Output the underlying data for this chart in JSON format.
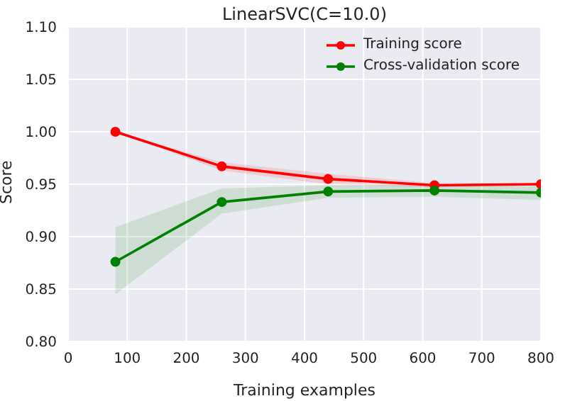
{
  "chart_data": {
    "type": "line",
    "title": "LinearSVC(C=10.0)",
    "xlabel": "Training examples",
    "ylabel": "Score",
    "x": [
      80,
      260,
      440,
      620,
      800
    ],
    "series": [
      {
        "name": "Training score",
        "color": "#ff0000",
        "values": [
          1.0,
          0.967,
          0.955,
          0.949,
          0.95
        ],
        "lower": [
          1.0,
          0.963,
          0.95,
          0.947,
          0.949
        ],
        "upper": [
          1.0,
          0.971,
          0.96,
          0.951,
          0.951
        ]
      },
      {
        "name": "Cross-validation score",
        "color": "#008000",
        "values": [
          0.876,
          0.933,
          0.943,
          0.944,
          0.942
        ],
        "lower": [
          0.845,
          0.922,
          0.937,
          0.938,
          0.935
        ],
        "upper": [
          0.909,
          0.946,
          0.949,
          0.949,
          0.948
        ]
      }
    ],
    "xlim": [
      0,
      800
    ],
    "xticks": [
      0,
      100,
      200,
      300,
      400,
      500,
      600,
      700,
      800
    ],
    "ylim": [
      0.8,
      1.1
    ],
    "yticks": [
      {
        "value": 0.8,
        "label": "0.80"
      },
      {
        "value": 0.85,
        "label": "0.85"
      },
      {
        "value": 0.9,
        "label": "0.90"
      },
      {
        "value": 0.95,
        "label": "0.95"
      },
      {
        "value": 1.0,
        "label": "1.00"
      },
      {
        "value": 1.05,
        "label": "1.05"
      },
      {
        "value": 1.1,
        "label": "1.10"
      }
    ],
    "grid": true,
    "legend": "top right",
    "marker": "circle",
    "line_style": "solid"
  }
}
